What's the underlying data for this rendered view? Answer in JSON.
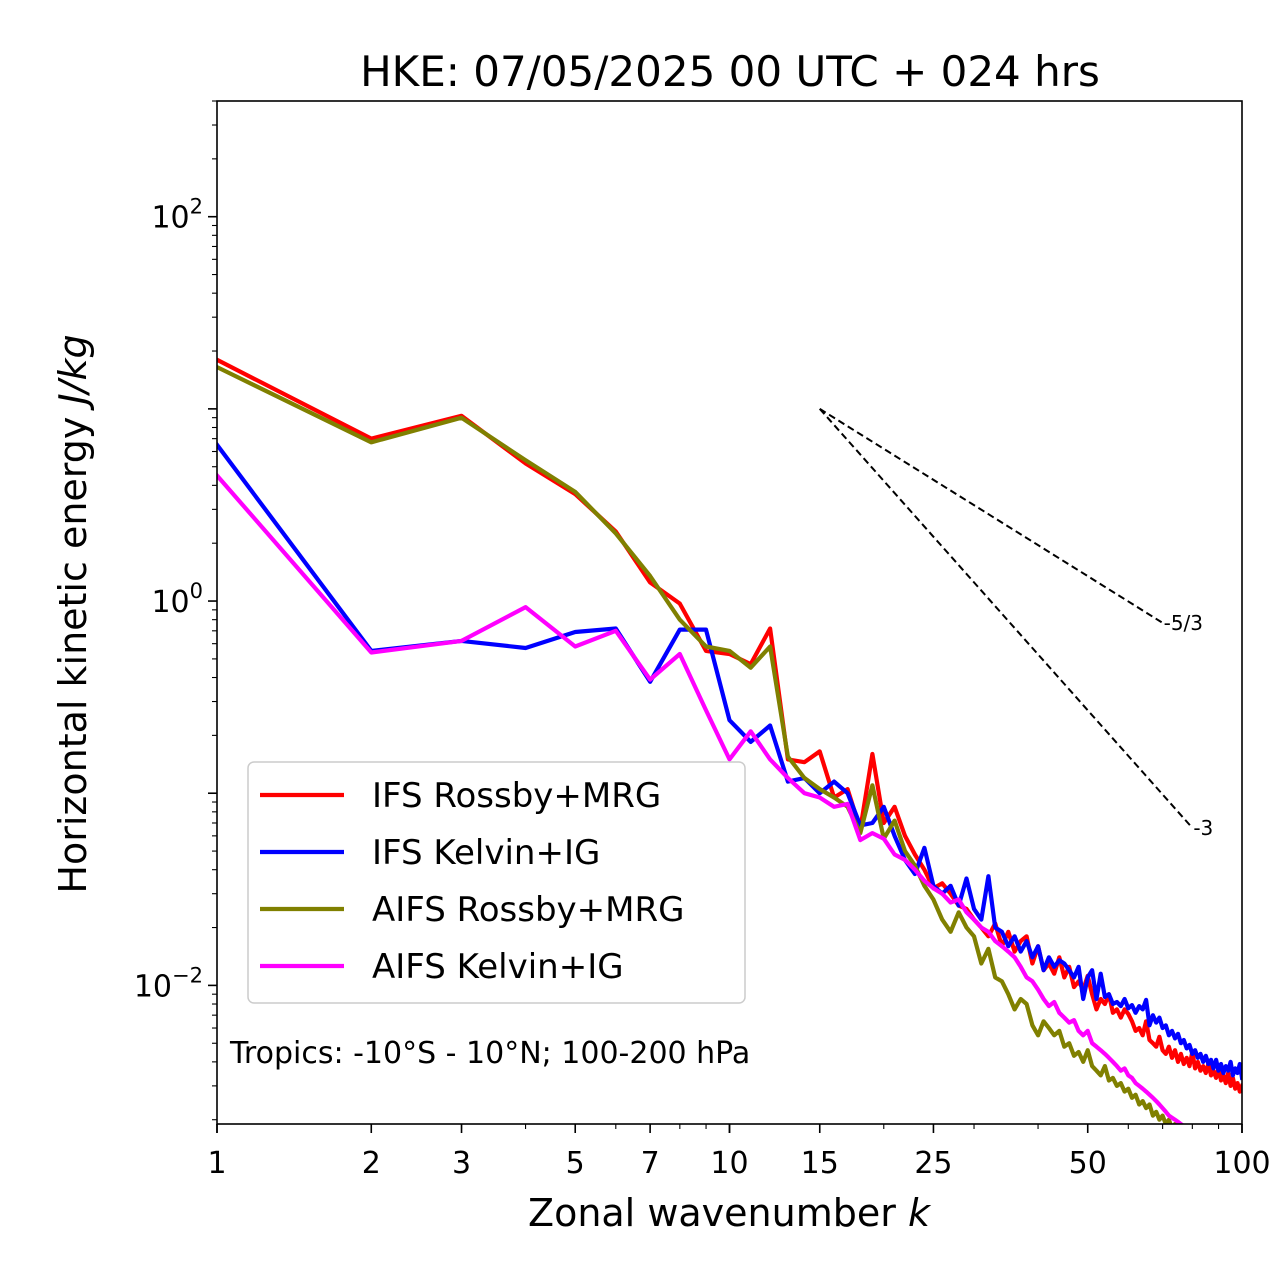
{
  "chart_data": {
    "type": "line",
    "title": "HKE: 07/05/2025 00 UTC + 024 hrs",
    "xlabel_prefix": "Zonal wavenumber ",
    "xlabel_var": "k",
    "ylabel_prefix": "Horizontal kinetic energy ",
    "ylabel_unit": "J/kg",
    "x_scale": "log",
    "y_scale": "log",
    "xlim": [
      1,
      100
    ],
    "ylim": [
      0.0019,
      400
    ],
    "x_ticks": [
      {
        "value": 1,
        "label": "1"
      },
      {
        "value": 2,
        "label": "2"
      },
      {
        "value": 3,
        "label": "3"
      },
      {
        "value": 5,
        "label": "5"
      },
      {
        "value": 7,
        "label": "7"
      },
      {
        "value": 10,
        "label": "10"
      },
      {
        "value": 15,
        "label": "15"
      },
      {
        "value": 25,
        "label": "25"
      },
      {
        "value": 50,
        "label": "50"
      },
      {
        "value": 100,
        "label": "100"
      }
    ],
    "y_ticks": [
      {
        "value": 100,
        "base": "10",
        "exp": "2"
      },
      {
        "value": 1,
        "base": "10",
        "exp": "0"
      },
      {
        "value": 0.01,
        "base": "10",
        "exp": "−2"
      }
    ],
    "grid": false,
    "legend_position": "lower-left",
    "annotation": "Tropics: -10°S - 10°N; 100-200 hPa",
    "reference_lines": [
      {
        "label": "-5/3",
        "x": [
          15,
          70
        ],
        "y": [
          10,
          0.77
        ]
      },
      {
        "label": "-3",
        "x": [
          15,
          80
        ],
        "y": [
          10,
          0.066
        ]
      }
    ],
    "series": [
      {
        "name": "IFS Rossby+MRG",
        "color": "#ff0000",
        "x": [
          1,
          2,
          3,
          4,
          5,
          6,
          7,
          8,
          9,
          10,
          11,
          12,
          13,
          14,
          15,
          16,
          17,
          18,
          19,
          20,
          21,
          22,
          23,
          24,
          25,
          26,
          27,
          28,
          29,
          30,
          31,
          32,
          33,
          34,
          35,
          36,
          37,
          38,
          39,
          40,
          41,
          42,
          43,
          44,
          45,
          46,
          47,
          48,
          49,
          50,
          51,
          52,
          53,
          54,
          55,
          56,
          57,
          58,
          59,
          60,
          61,
          62,
          63,
          64,
          65,
          66,
          67,
          68,
          69,
          70,
          71,
          72,
          73,
          74,
          75,
          76,
          77,
          78,
          79,
          80,
          81,
          82,
          83,
          84,
          85,
          86,
          87,
          88,
          89,
          90,
          91,
          92,
          93,
          94,
          95,
          96,
          97,
          98,
          99,
          100
        ],
        "y": [
          18,
          7.0,
          9.2,
          5.2,
          3.6,
          2.3,
          1.25,
          0.97,
          0.55,
          0.53,
          0.47,
          0.72,
          0.15,
          0.145,
          0.165,
          0.095,
          0.105,
          0.065,
          0.16,
          0.07,
          0.085,
          0.06,
          0.048,
          0.04,
          0.032,
          0.034,
          0.03,
          0.026,
          0.025,
          0.022,
          0.02,
          0.018,
          0.021,
          0.016,
          0.019,
          0.015,
          0.017,
          0.018,
          0.013,
          0.016,
          0.012,
          0.013,
          0.0115,
          0.014,
          0.011,
          0.0125,
          0.0098,
          0.0105,
          0.0095,
          0.0112,
          0.009,
          0.0075,
          0.0085,
          0.008,
          0.009,
          0.0072,
          0.0075,
          0.0068,
          0.0075,
          0.0071,
          0.0065,
          0.0058,
          0.006,
          0.0055,
          0.0065,
          0.0052,
          0.005,
          0.0048,
          0.0054,
          0.0046,
          0.0044,
          0.0048,
          0.0042,
          0.0046,
          0.004,
          0.0044,
          0.0039,
          0.0042,
          0.0038,
          0.0045,
          0.0037,
          0.004,
          0.0036,
          0.0038,
          0.0035,
          0.0039,
          0.0034,
          0.0036,
          0.0033,
          0.0037,
          0.0032,
          0.0034,
          0.0031,
          0.0035,
          0.003,
          0.0033,
          0.0029,
          0.0031,
          0.0028,
          0.003
        ]
      },
      {
        "name": "IFS Kelvin+IG",
        "color": "#0000ff",
        "x": [
          1,
          2,
          3,
          4,
          5,
          6,
          7,
          8,
          9,
          10,
          11,
          12,
          13,
          14,
          15,
          16,
          17,
          18,
          19,
          20,
          21,
          22,
          23,
          24,
          25,
          26,
          27,
          28,
          29,
          30,
          31,
          32,
          33,
          34,
          35,
          36,
          37,
          38,
          39,
          40,
          41,
          42,
          43,
          44,
          45,
          46,
          47,
          48,
          49,
          50,
          51,
          52,
          53,
          54,
          55,
          56,
          57,
          58,
          59,
          60,
          61,
          62,
          63,
          64,
          65,
          66,
          67,
          68,
          69,
          70,
          71,
          72,
          73,
          74,
          75,
          76,
          77,
          78,
          79,
          80,
          81,
          82,
          83,
          84,
          85,
          86,
          87,
          88,
          89,
          90,
          91,
          92,
          93,
          94,
          95,
          96,
          97,
          98,
          99,
          100
        ],
        "y": [
          6.5,
          0.55,
          0.62,
          0.57,
          0.69,
          0.72,
          0.38,
          0.71,
          0.71,
          0.24,
          0.185,
          0.225,
          0.115,
          0.12,
          0.1,
          0.115,
          0.1,
          0.068,
          0.07,
          0.085,
          0.06,
          0.045,
          0.038,
          0.052,
          0.033,
          0.03,
          0.033,
          0.026,
          0.036,
          0.025,
          0.022,
          0.037,
          0.02,
          0.019,
          0.016,
          0.018,
          0.015,
          0.017,
          0.014,
          0.016,
          0.012,
          0.014,
          0.0125,
          0.0135,
          0.013,
          0.012,
          0.011,
          0.0125,
          0.0085,
          0.011,
          0.012,
          0.0085,
          0.0115,
          0.0087,
          0.009,
          0.008,
          0.0082,
          0.0078,
          0.0085,
          0.0076,
          0.0079,
          0.0072,
          0.0078,
          0.0075,
          0.0084,
          0.0062,
          0.007,
          0.0064,
          0.0068,
          0.006,
          0.0062,
          0.0055,
          0.0058,
          0.0053,
          0.0056,
          0.005,
          0.0052,
          0.0047,
          0.0049,
          0.0044,
          0.0046,
          0.0042,
          0.0044,
          0.004,
          0.0043,
          0.0039,
          0.0041,
          0.0037,
          0.0041,
          0.0036,
          0.0039,
          0.0035,
          0.0038,
          0.0036,
          0.004,
          0.0034,
          0.0037,
          0.0035,
          0.0039,
          0.0033
        ]
      },
      {
        "name": "AIFS Rossby+MRG",
        "color": "#808000",
        "x": [
          1,
          2,
          3,
          4,
          5,
          6,
          7,
          8,
          9,
          10,
          11,
          12,
          13,
          14,
          15,
          16,
          17,
          18,
          19,
          20,
          21,
          22,
          23,
          24,
          25,
          26,
          27,
          28,
          29,
          30,
          31,
          32,
          33,
          34,
          35,
          36,
          37,
          38,
          39,
          40,
          41,
          42,
          43,
          44,
          45,
          46,
          47,
          48,
          49,
          50,
          51,
          52,
          53,
          54,
          55,
          56,
          57,
          58,
          59,
          60,
          61,
          62,
          63,
          64,
          65,
          66,
          67,
          68,
          69,
          70,
          71,
          72,
          73,
          74,
          75,
          76,
          77,
          78
        ],
        "y": [
          16.5,
          6.7,
          9.0,
          5.4,
          3.7,
          2.25,
          1.35,
          0.8,
          0.58,
          0.55,
          0.45,
          0.58,
          0.155,
          0.12,
          0.105,
          0.095,
          0.085,
          0.062,
          0.11,
          0.058,
          0.072,
          0.05,
          0.042,
          0.033,
          0.028,
          0.022,
          0.019,
          0.024,
          0.02,
          0.018,
          0.013,
          0.0155,
          0.011,
          0.0105,
          0.009,
          0.0075,
          0.0085,
          0.008,
          0.0062,
          0.0055,
          0.0065,
          0.006,
          0.0055,
          0.0058,
          0.0048,
          0.005,
          0.0043,
          0.0045,
          0.004,
          0.0046,
          0.0038,
          0.0036,
          0.0034,
          0.0038,
          0.0032,
          0.0033,
          0.003,
          0.0031,
          0.0028,
          0.0029,
          0.0026,
          0.0027,
          0.0024,
          0.0025,
          0.0023,
          0.0024,
          0.0021,
          0.0022,
          0.002,
          0.0021,
          0.0019,
          0.002,
          0.0018,
          0.0019,
          0.0017,
          0.0018,
          0.0016,
          0.0017
        ]
      },
      {
        "name": "AIFS Kelvin+IG",
        "color": "#ff00ff",
        "x": [
          1,
          2,
          3,
          4,
          5,
          6,
          7,
          8,
          9,
          10,
          11,
          12,
          13,
          14,
          15,
          16,
          17,
          18,
          19,
          20,
          21,
          22,
          23,
          24,
          25,
          26,
          27,
          28,
          29,
          30,
          31,
          32,
          33,
          34,
          35,
          36,
          37,
          38,
          39,
          40,
          41,
          42,
          43,
          44,
          45,
          46,
          47,
          48,
          49,
          50,
          51,
          52,
          53,
          54,
          55,
          56,
          57,
          58,
          59,
          60,
          61,
          62,
          63,
          64,
          65,
          66,
          67,
          68,
          69,
          70,
          71,
          72,
          73,
          74,
          75,
          76,
          77,
          78
        ],
        "y": [
          4.5,
          0.54,
          0.62,
          0.93,
          0.58,
          0.7,
          0.39,
          0.53,
          0.27,
          0.15,
          0.21,
          0.15,
          0.12,
          0.1,
          0.095,
          0.085,
          0.088,
          0.057,
          0.062,
          0.058,
          0.048,
          0.045,
          0.04,
          0.035,
          0.032,
          0.03,
          0.027,
          0.028,
          0.024,
          0.022,
          0.02,
          0.019,
          0.017,
          0.016,
          0.015,
          0.014,
          0.0125,
          0.011,
          0.0105,
          0.0095,
          0.0085,
          0.0078,
          0.0082,
          0.0072,
          0.0068,
          0.0064,
          0.0066,
          0.0058,
          0.0055,
          0.0058,
          0.005,
          0.0048,
          0.0046,
          0.0044,
          0.0042,
          0.004,
          0.0038,
          0.0036,
          0.0037,
          0.0034,
          0.0033,
          0.0031,
          0.003,
          0.0029,
          0.0028,
          0.0027,
          0.0026,
          0.0025,
          0.0024,
          0.0023,
          0.0022,
          0.0021,
          0.00205,
          0.002,
          0.00195,
          0.0019,
          0.00185,
          0.0018
        ]
      }
    ]
  }
}
